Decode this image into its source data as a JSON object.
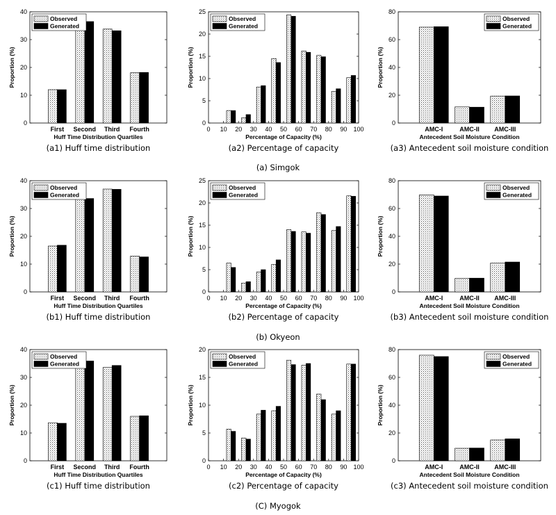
{
  "group_captions": [
    "(a) Simgok",
    "(b) Okyeon",
    "(C) Myogok"
  ],
  "chart_data": [
    {
      "id": "a1",
      "type": "bar",
      "caption": "(a1) Huff time distribution",
      "categories": [
        "First",
        "Second",
        "Third",
        "Fourth"
      ],
      "series": [
        {
          "name": "Observed",
          "values": [
            12,
            36,
            33.8,
            18.1
          ]
        },
        {
          "name": "Generated",
          "values": [
            12,
            36.5,
            33.2,
            18.2
          ]
        }
      ],
      "xlabel": "Huff Time Distribution Quartiles",
      "ylabel": "Proportion (%)",
      "ylim": [
        0,
        40
      ],
      "yticks": [
        0,
        10,
        20,
        30,
        40
      ],
      "legend": "top-left"
    },
    {
      "id": "a2",
      "type": "bar",
      "caption": "(a2) Percentage of capacity",
      "x": [
        15,
        25,
        35,
        45,
        55,
        65,
        75,
        85,
        95
      ],
      "series": [
        {
          "name": "Observed",
          "values": [
            2.8,
            1.2,
            8.1,
            14.5,
            24.3,
            16.2,
            15.2,
            7.1,
            10.2
          ]
        },
        {
          "name": "Generated",
          "values": [
            2.8,
            1.9,
            8.4,
            13.6,
            24,
            15.9,
            14.9,
            7.7,
            10.7
          ]
        }
      ],
      "xlabel": "Percentage of Capacity (%)",
      "ylabel": "Proportion (%)",
      "xlim": [
        0,
        100
      ],
      "xticks": [
        0,
        10,
        20,
        30,
        40,
        50,
        60,
        70,
        80,
        90,
        100
      ],
      "ylim": [
        0,
        25
      ],
      "yticks": [
        0,
        5,
        10,
        15,
        20,
        25
      ],
      "legend": "top-left"
    },
    {
      "id": "a3",
      "type": "bar",
      "caption": "(a3) Antecedent soil moisture condition",
      "categories": [
        "AMC-I",
        "AMC-II",
        "AMC-III"
      ],
      "series": [
        {
          "name": "Observed",
          "values": [
            69,
            11.6,
            19.4
          ]
        },
        {
          "name": "Generated",
          "values": [
            69.3,
            11.4,
            19.5
          ]
        }
      ],
      "xlabel": "Antecedent Soil Moisture Condition",
      "ylabel": "Proportion (%)",
      "ylim": [
        0,
        80
      ],
      "yticks": [
        0,
        20,
        40,
        60,
        80
      ],
      "legend": "top-right"
    },
    {
      "id": "b1",
      "type": "bar",
      "caption": "(b1) Huff time distribution",
      "categories": [
        "First",
        "Second",
        "Third",
        "Fourth"
      ],
      "series": [
        {
          "name": "Observed",
          "values": [
            16.5,
            33.6,
            37,
            12.9
          ]
        },
        {
          "name": "Generated",
          "values": [
            16.8,
            33.6,
            36.9,
            12.6
          ]
        }
      ],
      "xlabel": "Huff Time Distribution Quartiles",
      "ylabel": "Proportion (%)",
      "ylim": [
        0,
        40
      ],
      "yticks": [
        0,
        10,
        20,
        30,
        40
      ],
      "legend": "top-left"
    },
    {
      "id": "b2",
      "type": "bar",
      "caption": "(b2) Percentage of capacity",
      "x": [
        15,
        25,
        35,
        45,
        55,
        65,
        75,
        85,
        95
      ],
      "series": [
        {
          "name": "Observed",
          "values": [
            6.5,
            2,
            4.5,
            6.2,
            14,
            13.5,
            17.8,
            13.8,
            21.6
          ]
        },
        {
          "name": "Generated",
          "values": [
            5.5,
            2.3,
            5,
            7.2,
            13.6,
            13.2,
            17.4,
            14.7,
            21.5
          ]
        }
      ],
      "xlabel": "Percentage of Capacity (%)",
      "ylabel": "Proportion (%)",
      "xlim": [
        0,
        100
      ],
      "xticks": [
        0,
        10,
        20,
        30,
        40,
        50,
        60,
        70,
        80,
        90,
        100
      ],
      "ylim": [
        0,
        25
      ],
      "yticks": [
        0,
        5,
        10,
        15,
        20,
        25
      ],
      "legend": "top-left"
    },
    {
      "id": "b3",
      "type": "bar",
      "caption": "(b3) Antecedent soil moisture condition",
      "categories": [
        "AMC-I",
        "AMC-II",
        "AMC-III"
      ],
      "series": [
        {
          "name": "Observed",
          "values": [
            69.8,
            9.7,
            20.8
          ]
        },
        {
          "name": "Generated",
          "values": [
            69,
            9.9,
            21.5
          ]
        }
      ],
      "xlabel": "Antecedent Soil Moisture Condition",
      "ylabel": "Proportion (%)",
      "ylim": [
        0,
        80
      ],
      "yticks": [
        0,
        20,
        40,
        60,
        80
      ],
      "legend": "top-right"
    },
    {
      "id": "c1",
      "type": "bar",
      "caption": "(c1) Huff time distribution",
      "categories": [
        "First",
        "Second",
        "Third",
        "Fourth"
      ],
      "series": [
        {
          "name": "Observed",
          "values": [
            13.7,
            36.7,
            33.6,
            16
          ]
        },
        {
          "name": "Generated",
          "values": [
            13.5,
            35.9,
            34.3,
            16.2
          ]
        }
      ],
      "xlabel": "Huff Time Distribution Quartiles",
      "ylabel": "Proportion (%)",
      "ylim": [
        0,
        40
      ],
      "yticks": [
        0,
        10,
        20,
        30,
        40
      ],
      "legend": "top-left"
    },
    {
      "id": "c2",
      "type": "bar",
      "caption": "(c2) Percentage of capacity",
      "x": [
        15,
        25,
        35,
        45,
        55,
        65,
        75,
        85,
        95
      ],
      "series": [
        {
          "name": "Observed",
          "values": [
            5.7,
            4.1,
            8.4,
            9,
            18.1,
            17.2,
            12,
            8.4,
            17.4
          ]
        },
        {
          "name": "Generated",
          "values": [
            5.3,
            3.9,
            9.1,
            9.8,
            17.3,
            17.5,
            11,
            9,
            17.4
          ]
        }
      ],
      "xlabel": "Percentage of Capacity (%)",
      "ylabel": "Proportion (%)",
      "xlim": [
        0,
        100
      ],
      "xticks": [
        0,
        10,
        20,
        30,
        40,
        50,
        60,
        70,
        80,
        90,
        100
      ],
      "ylim": [
        0,
        20
      ],
      "yticks": [
        0,
        5,
        10,
        15,
        20
      ],
      "legend": "top-left"
    },
    {
      "id": "c3",
      "type": "bar",
      "caption": "(c3) Antecedent soil moisture condition",
      "categories": [
        "AMC-I",
        "AMC-II",
        "AMC-III"
      ],
      "series": [
        {
          "name": "Observed",
          "values": [
            76,
            9,
            15
          ]
        },
        {
          "name": "Generated",
          "values": [
            75,
            9.2,
            15.8
          ]
        }
      ],
      "xlabel": "Antecedent Soil Moisture Condition",
      "ylabel": "Proportion (%)",
      "ylim": [
        0,
        80
      ],
      "yticks": [
        0,
        20,
        40,
        60,
        80
      ],
      "legend": "top-right"
    }
  ]
}
